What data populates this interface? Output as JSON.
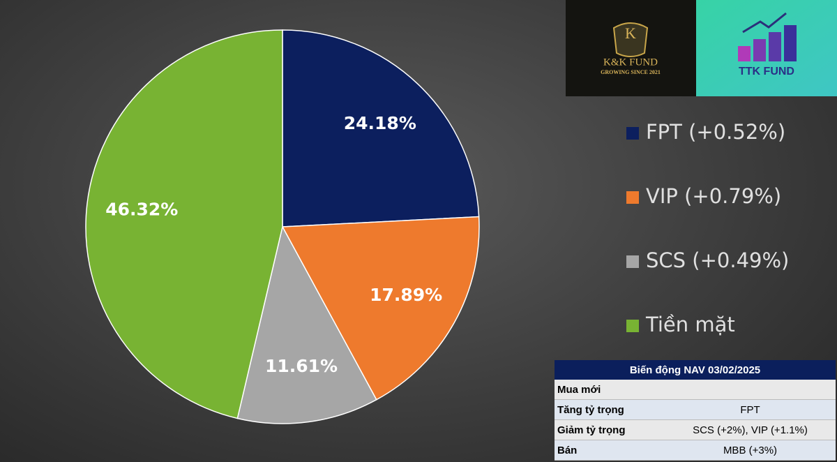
{
  "chart_data": {
    "type": "pie",
    "categories": [
      "FPT (+0.52%)",
      "VIP (+0.79%)",
      "SCS (+0.49%)",
      "Tiền mặt"
    ],
    "values": [
      24.18,
      17.89,
      11.61,
      46.32
    ],
    "value_labels": [
      "24.18%",
      "17.89%",
      "11.61%",
      "46.32%"
    ],
    "colors": [
      "#0c1f5e",
      "#ee7a2d",
      "#a6a6a6",
      "#78b333"
    ]
  },
  "logos": {
    "left": {
      "mark": "K",
      "name": "K&K FUND",
      "slogan": "GROWING SINCE 2021"
    },
    "right": {
      "name": "TTK FUND"
    }
  },
  "table": {
    "title": "Biến động NAV 03/02/2025",
    "rows": [
      [
        "Mua mới"
      ],
      [
        "Tăng tỷ trọng",
        "FPT"
      ],
      [
        "Giảm tỷ trọng",
        "SCS (+2%), VIP (+1.1%)"
      ],
      [
        "Bán",
        "MBB (+3%)"
      ]
    ]
  }
}
